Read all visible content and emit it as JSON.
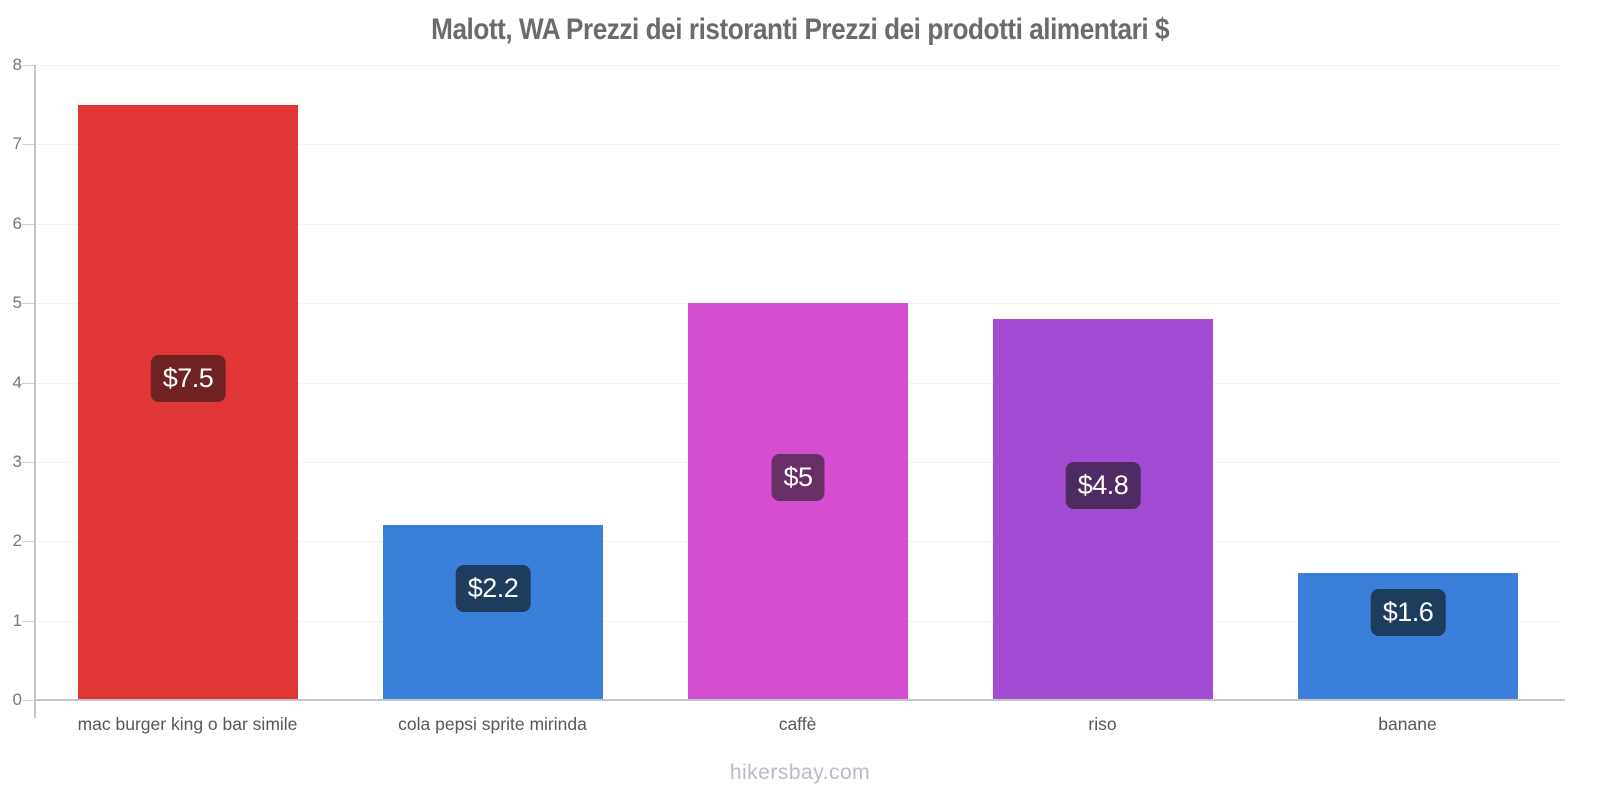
{
  "title": "Malott, WA Prezzi dei ristoranti Prezzi dei prodotti alimentari $",
  "footer": "hikersbay.com",
  "chart_data": {
    "type": "bar",
    "title": "Malott, WA Prezzi dei ristoranti Prezzi dei prodotti alimentari $",
    "xlabel": "",
    "ylabel": "",
    "categories": [
      "mac burger king o bar simile",
      "cola pepsi sprite mirinda",
      "caffè",
      "riso",
      "banane"
    ],
    "values": [
      7.5,
      2.2,
      5,
      4.8,
      1.6
    ],
    "value_labels": [
      "$7.5",
      "$2.2",
      "$5",
      "$4.8",
      "$1.6"
    ],
    "bar_colors": [
      "#e13636",
      "#3a80da",
      "#d44ecf",
      "#a44bd3",
      "#3a80da"
    ],
    "label_bg_colors": [
      "#702222",
      "#1e3c5e",
      "#6a2e67",
      "#4e2b62",
      "#1e3c5e"
    ],
    "label_text_color": "#ffffff",
    "ylim": [
      0,
      8
    ],
    "yticks": [
      0,
      1,
      2,
      3,
      4,
      5,
      6,
      7,
      8
    ],
    "grid": "faint horizontal gridlines at integer ticks",
    "legend": "none"
  }
}
